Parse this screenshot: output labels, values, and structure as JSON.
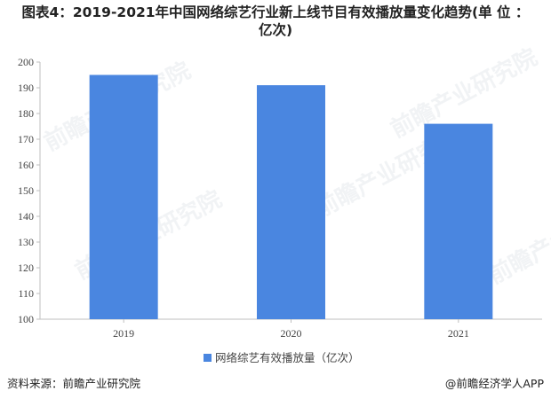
{
  "title_line1": "图表4：2019-2021年中国网络综艺行业新上线节目有效播放量变化趋势(单 位 ：",
  "title_line2": "亿次)",
  "watermark": "前瞻产业研究院",
  "chart_data": {
    "type": "bar",
    "categories": [
      "2019",
      "2020",
      "2021"
    ],
    "series": [
      {
        "name": "网络综艺有效播放量（亿次）",
        "values": [
          195,
          191,
          176
        ],
        "color": "#4a86e0"
      }
    ],
    "ylim": [
      100,
      200
    ],
    "yticks": [
      100,
      110,
      120,
      130,
      140,
      150,
      160,
      170,
      180,
      190,
      200
    ],
    "grid": false,
    "legend": "bottom"
  },
  "footer": {
    "source": "资料来源：前瞻产业研究院",
    "brand": "@前瞻经济学人APP"
  }
}
